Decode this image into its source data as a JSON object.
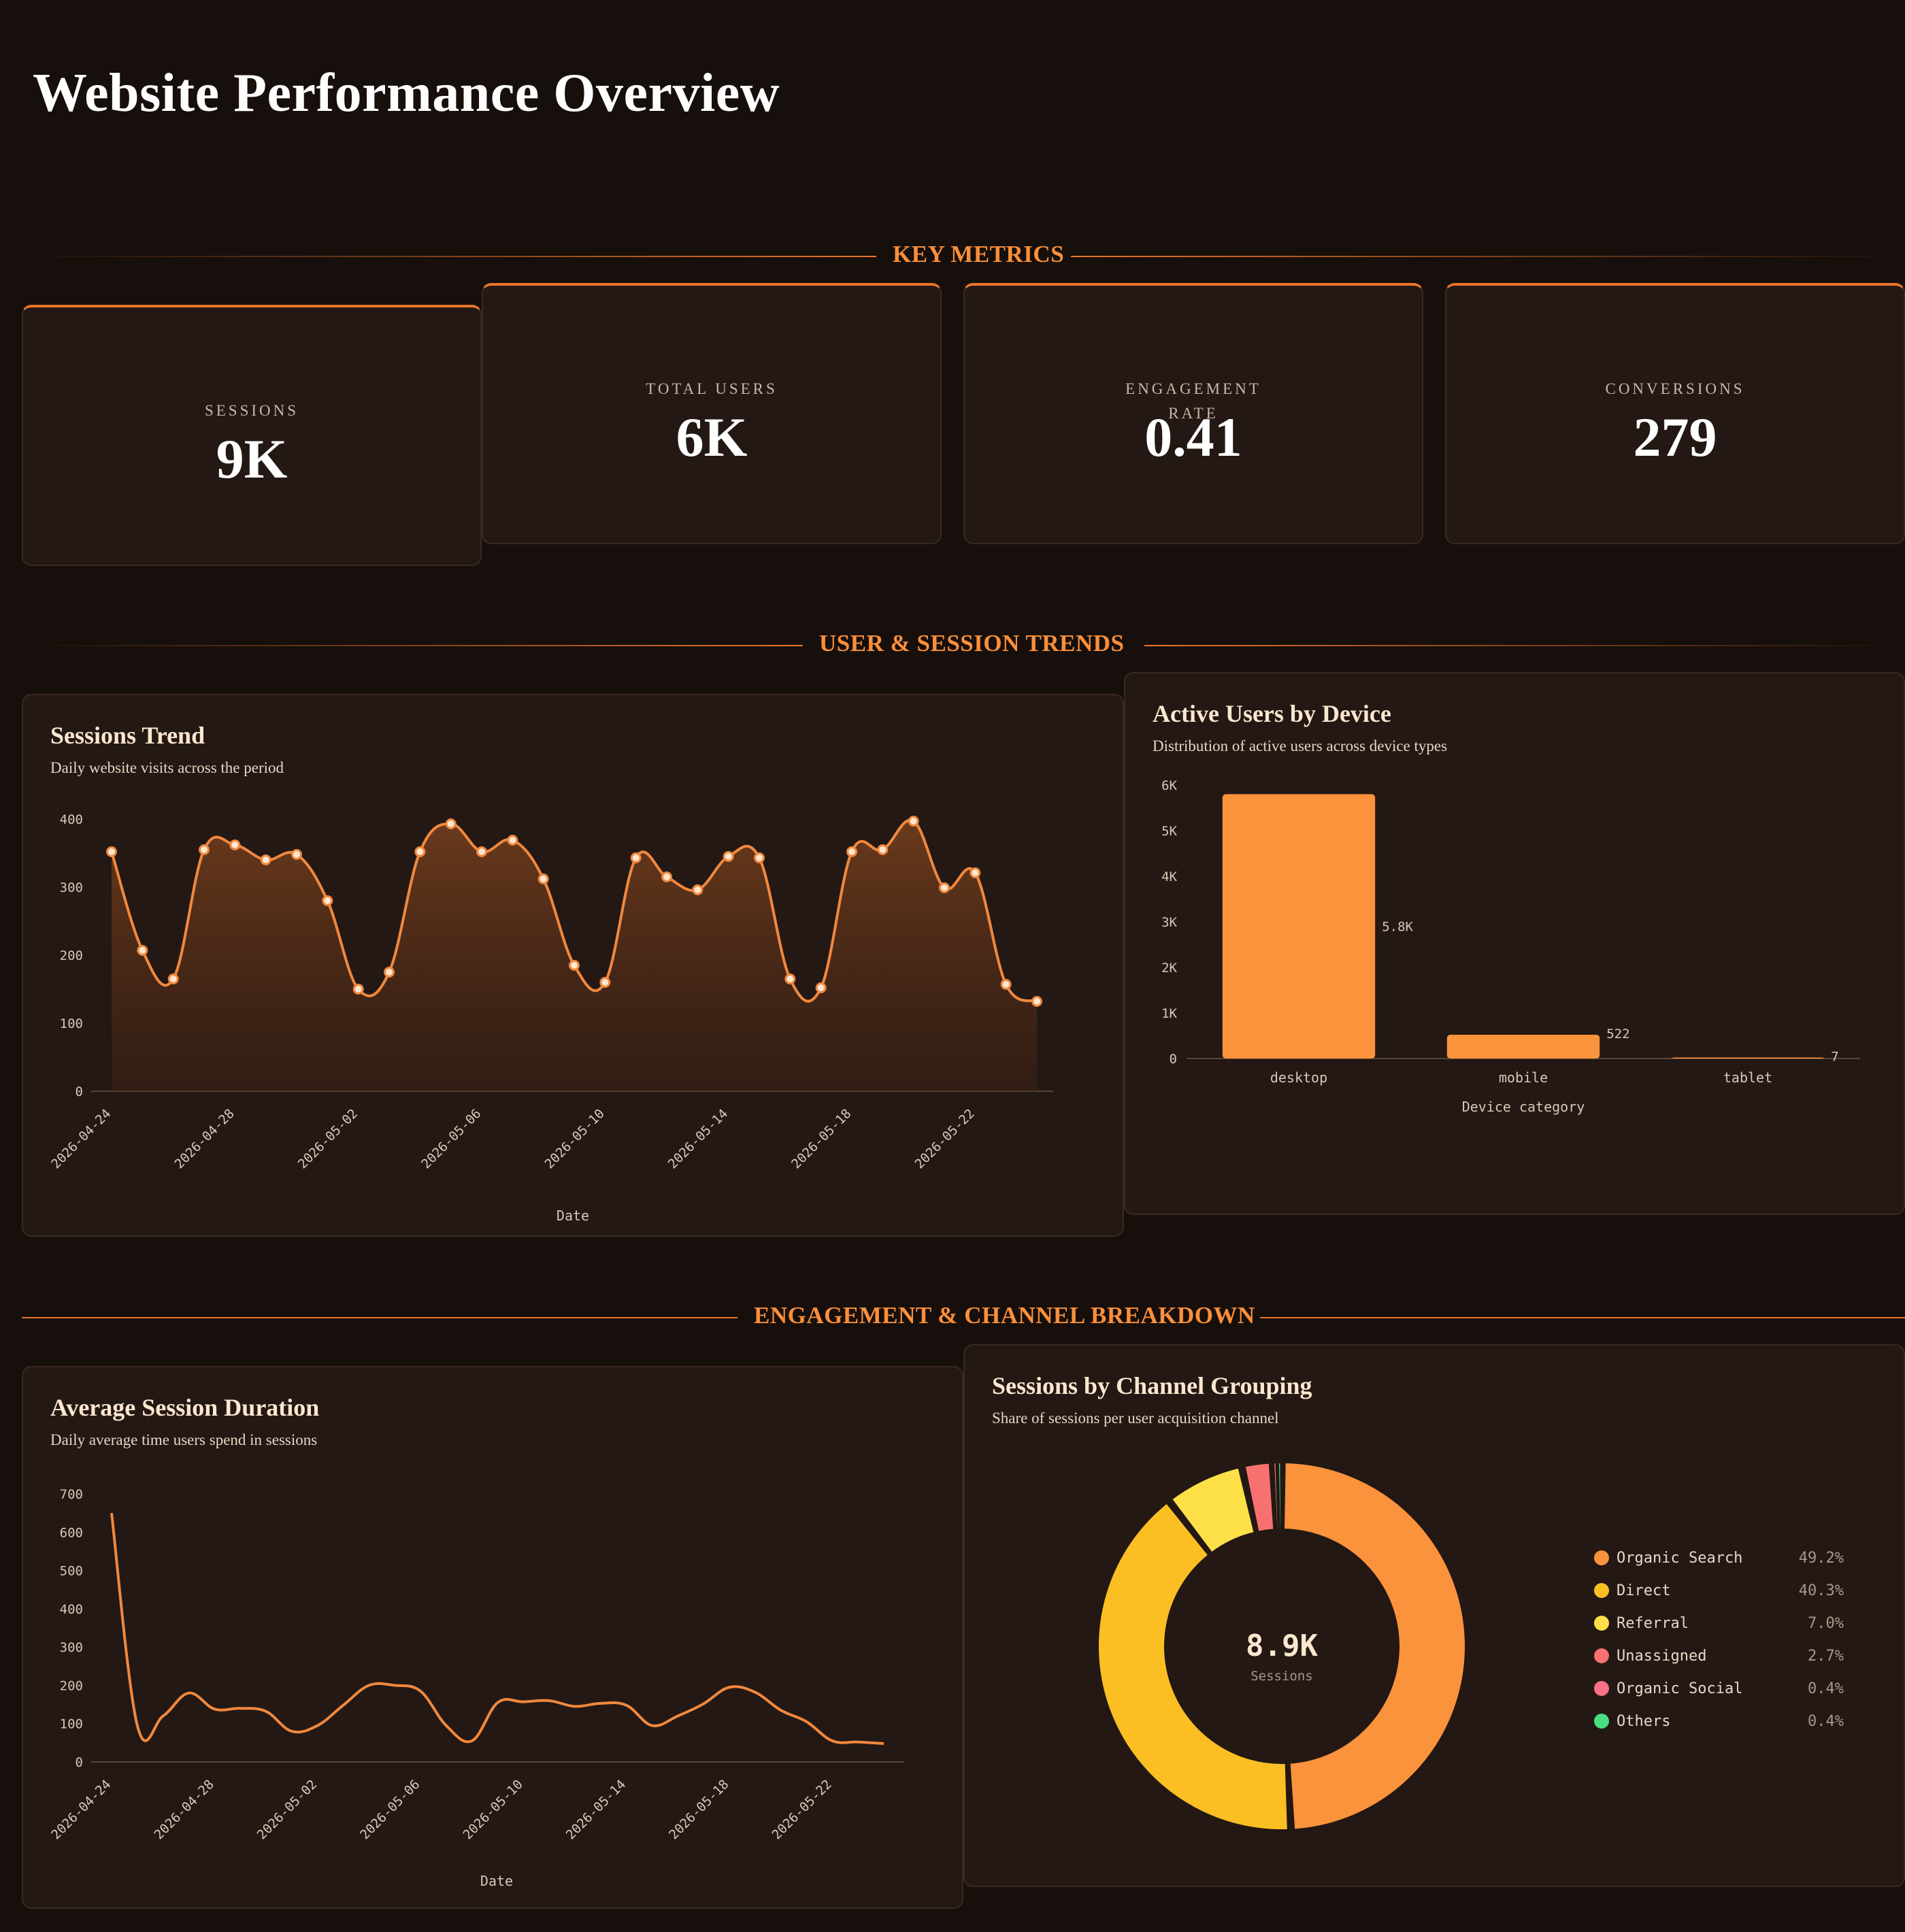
{
  "page": {
    "title": "Website Performance Overview"
  },
  "sections": {
    "key_metrics": "KEY METRICS",
    "trends": "USER & SESSION TRENDS",
    "engagement": "ENGAGEMENT & CHANNEL BREAKDOWN"
  },
  "kpis": [
    {
      "label": "SESSIONS",
      "value": "9K"
    },
    {
      "label": "TOTAL USERS",
      "value": "6K"
    },
    {
      "label": "ENGAGEMENT RATE",
      "value": "0.41"
    },
    {
      "label": "CONVERSIONS",
      "value": "279"
    }
  ],
  "colors": {
    "accent": "#f98f3c",
    "line": "#f0883e",
    "background": "#170f0b",
    "card": "#231813"
  },
  "chart_data": [
    {
      "type": "area",
      "id": "sessions_trend",
      "title": "Sessions Trend",
      "subtitle": "Daily website visits across the period",
      "xlabel": "Date",
      "ylabel": "",
      "ylim": [
        0,
        400
      ],
      "yticks": [
        "0",
        "100",
        "200",
        "300",
        "400"
      ],
      "xtick_labels": [
        "2026-04-24",
        "2026-04-28",
        "2026-05-02",
        "2026-05-06",
        "2026-05-10",
        "2026-05-14",
        "2026-05-18",
        "2026-05-22"
      ],
      "x": [
        "2026-04-24",
        "2026-04-25",
        "2026-04-26",
        "2026-04-27",
        "2026-04-28",
        "2026-04-29",
        "2026-04-30",
        "2026-05-01",
        "2026-05-02",
        "2026-05-03",
        "2026-05-04",
        "2026-05-05",
        "2026-05-06",
        "2026-05-07",
        "2026-05-08",
        "2026-05-09",
        "2026-05-10",
        "2026-05-11",
        "2026-05-12",
        "2026-05-13",
        "2026-05-14",
        "2026-05-15",
        "2026-05-16",
        "2026-05-17",
        "2026-05-18",
        "2026-05-19",
        "2026-05-20",
        "2026-05-21",
        "2026-05-22",
        "2026-05-23",
        "2026-05-24"
      ],
      "values": [
        352,
        207,
        165,
        355,
        362,
        340,
        348,
        280,
        150,
        175,
        352,
        393,
        352,
        369,
        312,
        185,
        160,
        343,
        315,
        296,
        345,
        343,
        165,
        152,
        352,
        355,
        397,
        299,
        321,
        157,
        132
      ],
      "grid": false
    },
    {
      "type": "bar",
      "id": "active_users_by_device",
      "title": "Active Users by Device",
      "subtitle": "Distribution of active users across device types",
      "xlabel": "Device category",
      "ylabel": "",
      "ylim": [
        0,
        6000
      ],
      "yticks": [
        "0",
        "1K",
        "2K",
        "3K",
        "4K",
        "5K",
        "6K"
      ],
      "categories": [
        "desktop",
        "mobile",
        "tablet"
      ],
      "values": [
        5800,
        522,
        7
      ],
      "data_labels": [
        "5.8K",
        "522",
        "7"
      ],
      "grid": false
    },
    {
      "type": "line",
      "id": "avg_session_duration",
      "title": "Average Session Duration",
      "subtitle": "Daily average time users spend in sessions",
      "xlabel": "Date",
      "ylabel": "",
      "ylim": [
        0,
        700
      ],
      "yticks": [
        "0",
        "100",
        "200",
        "300",
        "400",
        "500",
        "600",
        "700"
      ],
      "xtick_labels": [
        "2026-04-24",
        "2026-04-28",
        "2026-05-02",
        "2026-05-06",
        "2026-05-10",
        "2026-05-14",
        "2026-05-18",
        "2026-05-22"
      ],
      "x": [
        "2026-04-24",
        "2026-04-25",
        "2026-04-26",
        "2026-04-27",
        "2026-04-28",
        "2026-04-29",
        "2026-04-30",
        "2026-05-01",
        "2026-05-02",
        "2026-05-03",
        "2026-05-04",
        "2026-05-05",
        "2026-05-06",
        "2026-05-07",
        "2026-05-08",
        "2026-05-09",
        "2026-05-10",
        "2026-05-11",
        "2026-05-12",
        "2026-05-13",
        "2026-05-14",
        "2026-05-15",
        "2026-05-16",
        "2026-05-17",
        "2026-05-18",
        "2026-05-19",
        "2026-05-20",
        "2026-05-21",
        "2026-05-22",
        "2026-05-23",
        "2026-05-24"
      ],
      "values": [
        650,
        95,
        120,
        180,
        138,
        140,
        132,
        80,
        95,
        148,
        200,
        200,
        185,
        95,
        55,
        155,
        157,
        160,
        145,
        153,
        148,
        95,
        120,
        152,
        195,
        182,
        135,
        105,
        55,
        52,
        48
      ],
      "grid": false
    },
    {
      "type": "pie",
      "id": "sessions_by_channel",
      "title": "Sessions by Channel Grouping",
      "subtitle": "Share of sessions per user acquisition channel",
      "center_value": "8.9K",
      "center_label": "Sessions",
      "slices": [
        {
          "name": "Organic Search",
          "value": 49.2,
          "label": "49.2%",
          "color": "#fb923c"
        },
        {
          "name": "Direct",
          "value": 40.3,
          "label": "40.3%",
          "color": "#fbbf24"
        },
        {
          "name": "Referral",
          "value": 7.0,
          "label": "7.0%",
          "color": "#fde047"
        },
        {
          "name": "Unassigned",
          "value": 2.7,
          "label": "2.7%",
          "color": "#f87171"
        },
        {
          "name": "Organic Social",
          "value": 0.4,
          "label": "0.4%",
          "color": "#fb7185"
        },
        {
          "name": "Others",
          "value": 0.4,
          "label": "0.4%",
          "color": "#4ade80"
        }
      ]
    }
  ]
}
